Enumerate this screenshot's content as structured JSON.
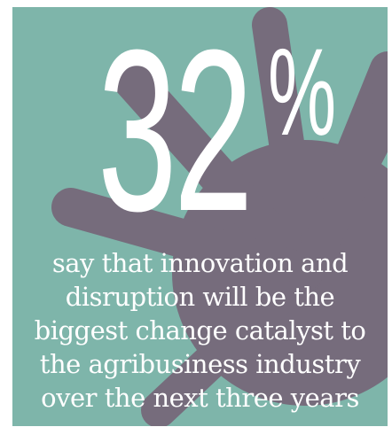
{
  "stat": {
    "number": "32",
    "percent_sign": "%"
  },
  "caption": {
    "lines": [
      "say that innovation and",
      "disruption will be the",
      "biggest change catalyst to",
      "the agribusiness industry",
      "over the next three years"
    ]
  },
  "colors": {
    "background": "#7eb5aa",
    "burst": "#766c7c",
    "text": "#ffffff"
  }
}
